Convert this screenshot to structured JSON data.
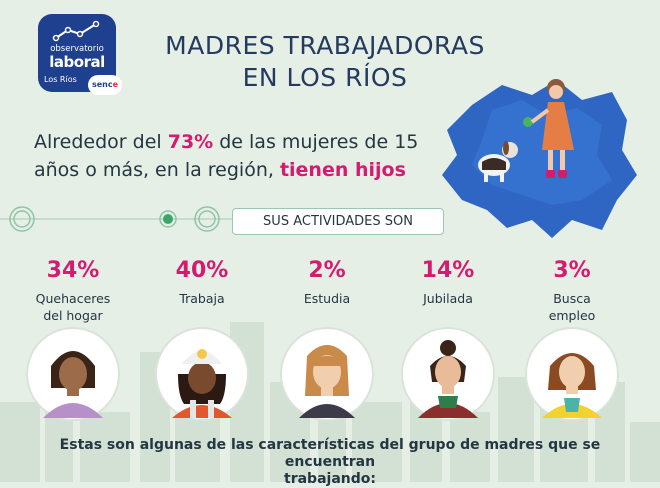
{
  "logo": {
    "line1": "observatorio",
    "line2": "laboral",
    "region": "Los Ríos",
    "sence_a": "senc",
    "sence_b": "e"
  },
  "title": {
    "line1": "MADRES TRABAJADORAS",
    "line2": "EN LOS RÍOS"
  },
  "headline": {
    "part1": "Alrededor del ",
    "percent": "73%",
    "part2": " de las mujeres de 15 años o más, en la región, ",
    "emphasis": "tienen hijos"
  },
  "activities_label": "SUS ACTIVIDADES SON",
  "activities": [
    {
      "percent": "34%",
      "label_1": "Quehaceres",
      "label_2": "del hogar"
    },
    {
      "percent": "40%",
      "label_1": "Trabaja",
      "label_2": ""
    },
    {
      "percent": "2%",
      "label_1": "Estudia",
      "label_2": ""
    },
    {
      "percent": "14%",
      "label_1": "Jubilada",
      "label_2": ""
    },
    {
      "percent": "3%",
      "label_1": "Busca",
      "label_2": "empleo"
    }
  ],
  "footer": {
    "line1": "Estas son algunas de las características del grupo de madres que se encuentran",
    "line2": "trabajando:"
  },
  "colors": {
    "accent": "#d51b6f",
    "navy": "#243a5e",
    "map_blue": "#2f66c4",
    "background": "#e6efe6"
  }
}
